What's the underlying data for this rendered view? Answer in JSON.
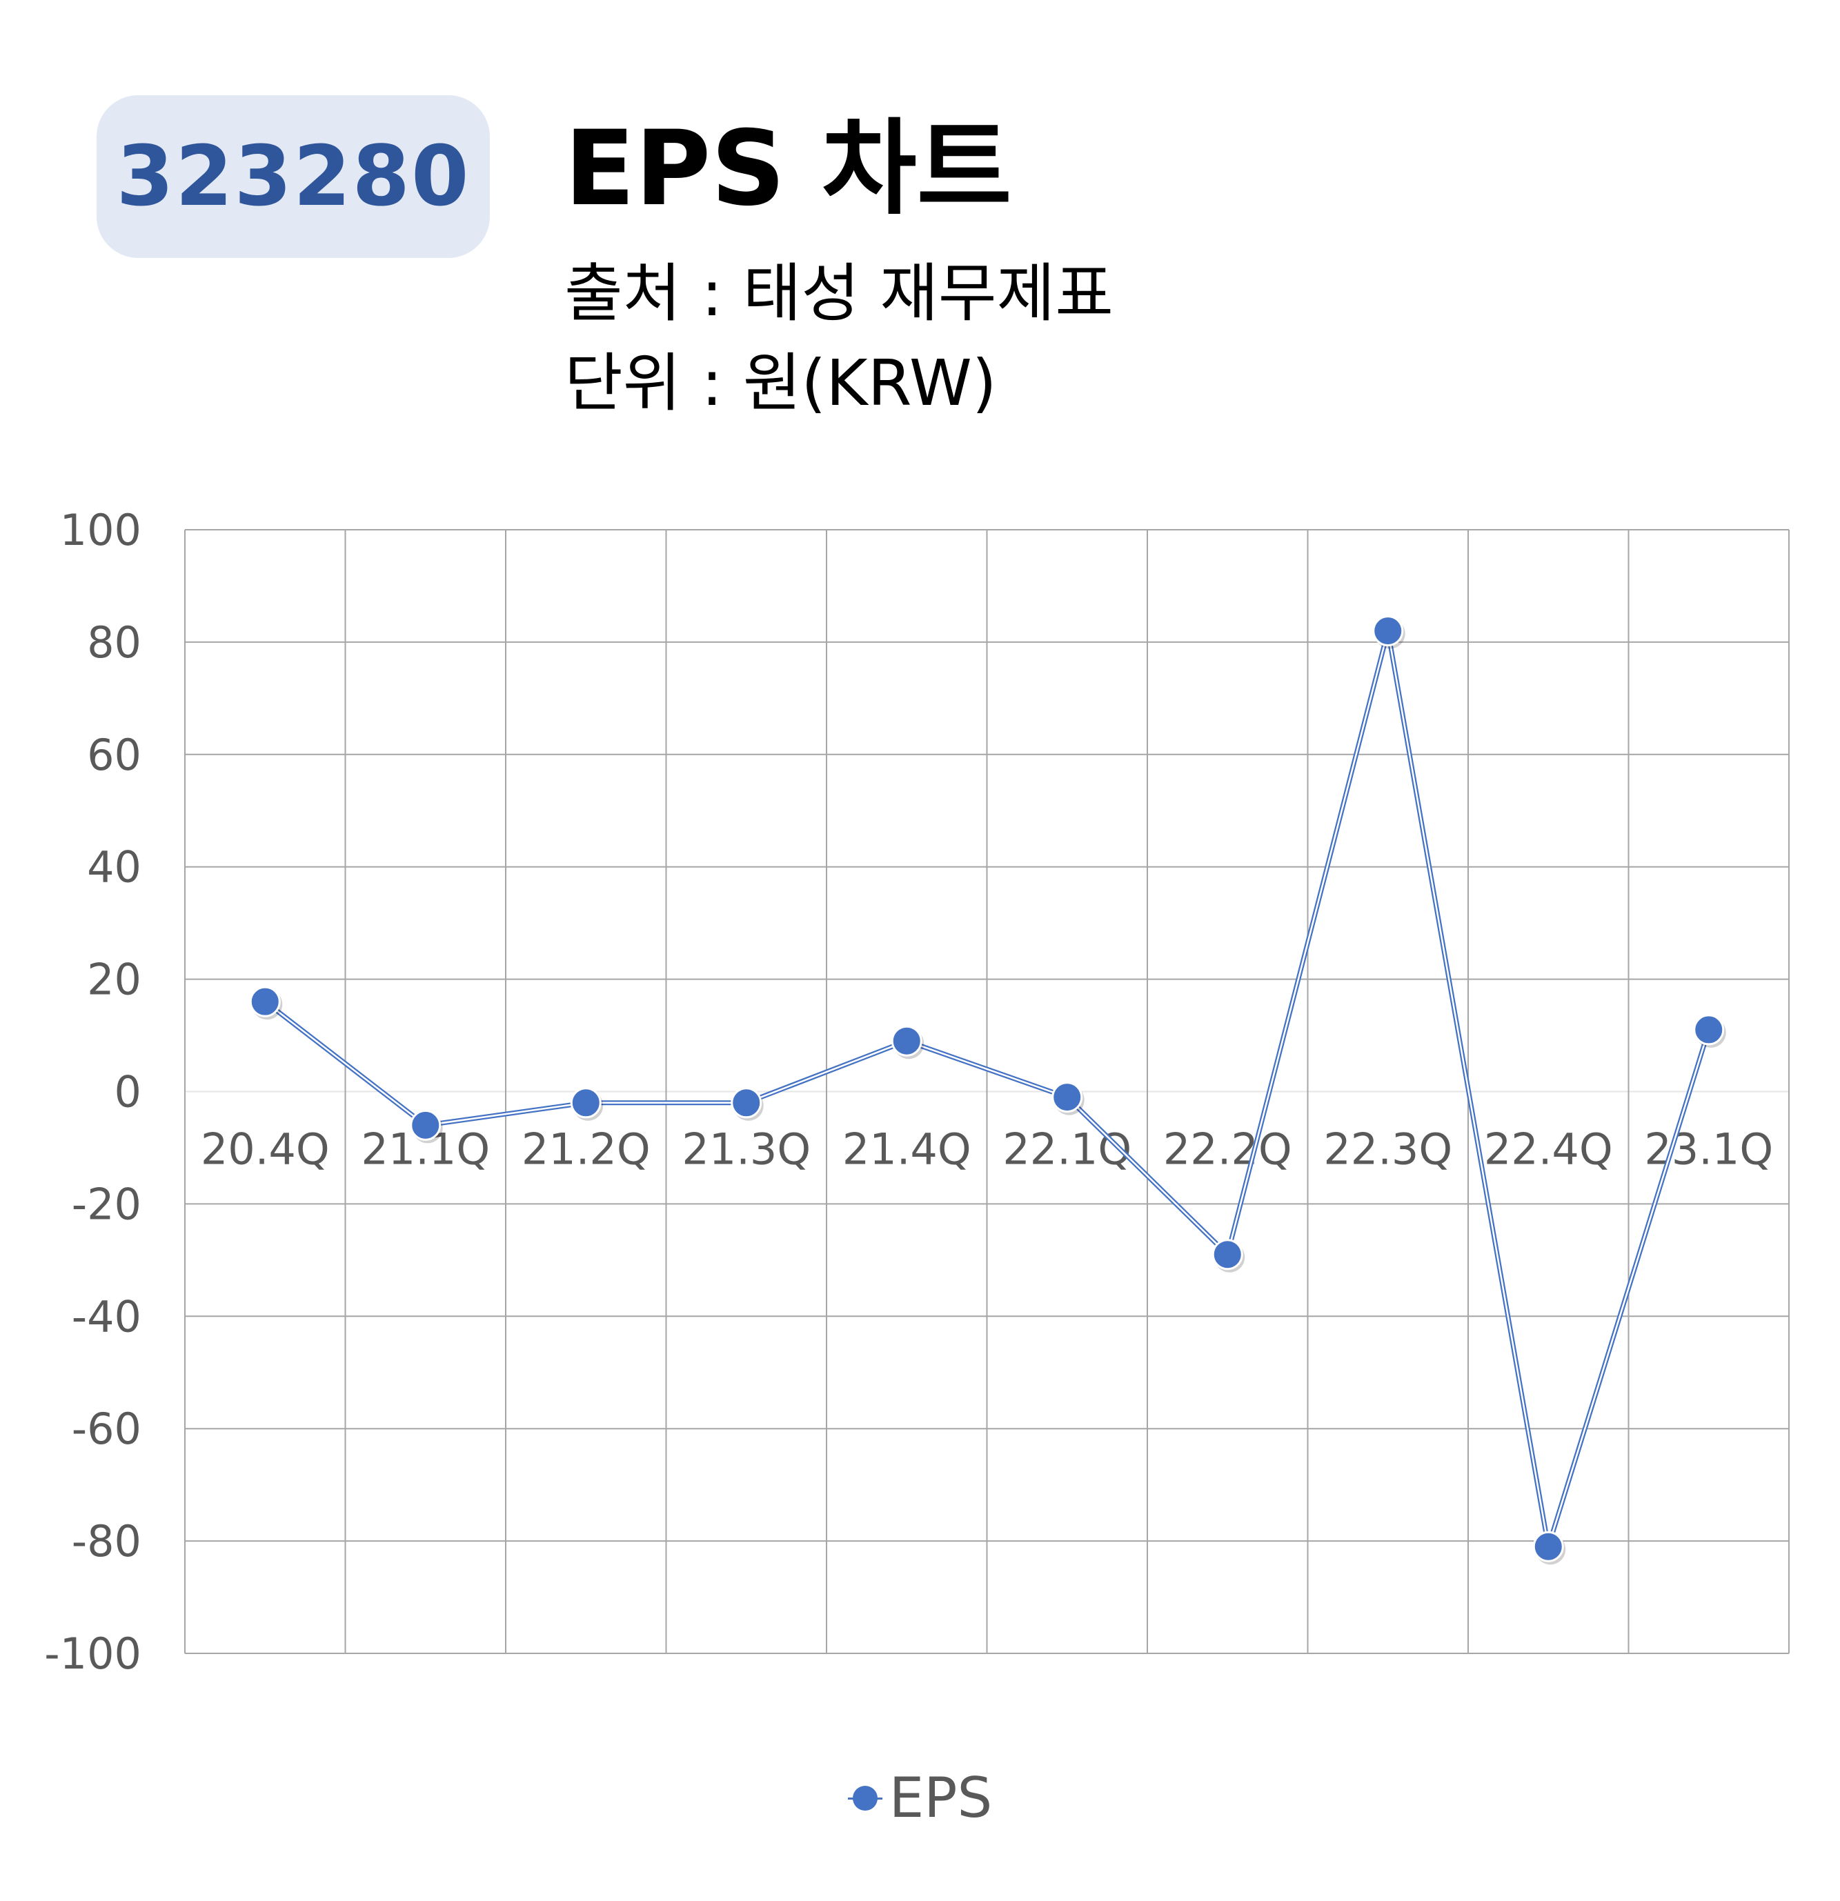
{
  "header": {
    "code": "323280",
    "title": "EPS 차트",
    "source": "출처 : 태성 재무제표",
    "unit": "단위 : 원(KRW)"
  },
  "colors": {
    "badge_bg": "#e3e9f4",
    "badge_text": "#2f559a",
    "series": "#4472c4",
    "grid": "#a6a6a6",
    "axis_text": "#595959"
  },
  "chart_data": {
    "type": "line",
    "categories": [
      "20.4Q",
      "21.1Q",
      "21.2Q",
      "21.3Q",
      "21.4Q",
      "22.1Q",
      "22.2Q",
      "22.3Q",
      "22.4Q",
      "23.1Q"
    ],
    "series": [
      {
        "name": "EPS",
        "values": [
          16,
          -6,
          -2,
          -2,
          9,
          -1,
          -29,
          82,
          -81,
          11
        ]
      }
    ],
    "ylim": [
      -100,
      100
    ],
    "yticks": [
      "100",
      "80",
      "60",
      "40",
      "20",
      "0",
      "-20",
      "-40",
      "-60",
      "-80",
      "-100"
    ],
    "grid": true,
    "legend": "bottom-center"
  }
}
